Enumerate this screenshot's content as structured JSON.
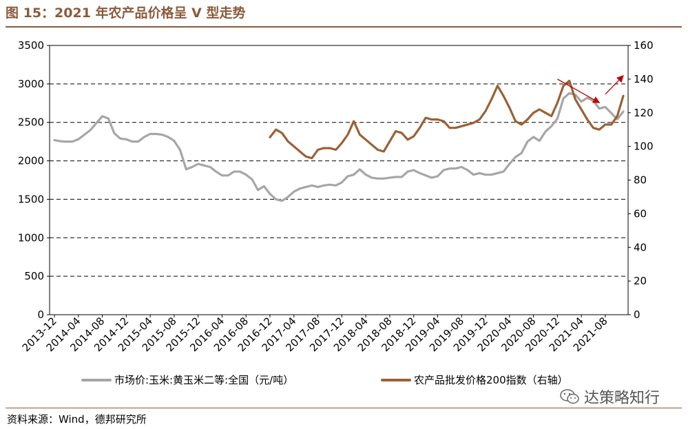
{
  "header": {
    "title": "图 15：2021 年农产品价格呈 V 型走势"
  },
  "footer": {
    "source": "资料来源：Wind，德邦研究所",
    "watermark": "达策略知行",
    "watermark_icon": "wechat-icon"
  },
  "chart_data": {
    "type": "line",
    "x": [
      "2013-12",
      "2014-01",
      "2014-02",
      "2014-03",
      "2014-04",
      "2014-05",
      "2014-06",
      "2014-07",
      "2014-08",
      "2014-09",
      "2014-10",
      "2014-11",
      "2014-12",
      "2015-01",
      "2015-02",
      "2015-03",
      "2015-04",
      "2015-05",
      "2015-06",
      "2015-07",
      "2015-08",
      "2015-09",
      "2015-10",
      "2015-11",
      "2015-12",
      "2016-01",
      "2016-02",
      "2016-03",
      "2016-04",
      "2016-05",
      "2016-06",
      "2016-07",
      "2016-08",
      "2016-09",
      "2016-10",
      "2016-11",
      "2016-12",
      "2017-01",
      "2017-02",
      "2017-03",
      "2017-04",
      "2017-05",
      "2017-06",
      "2017-07",
      "2017-08",
      "2017-09",
      "2017-10",
      "2017-11",
      "2017-12",
      "2018-01",
      "2018-02",
      "2018-03",
      "2018-04",
      "2018-05",
      "2018-06",
      "2018-07",
      "2018-08",
      "2018-09",
      "2018-10",
      "2018-11",
      "2018-12",
      "2019-01",
      "2019-02",
      "2019-03",
      "2019-04",
      "2019-05",
      "2019-06",
      "2019-07",
      "2019-08",
      "2019-09",
      "2019-10",
      "2019-11",
      "2019-12",
      "2020-01",
      "2020-02",
      "2020-03",
      "2020-04",
      "2020-05",
      "2020-06",
      "2020-07",
      "2020-08",
      "2020-09",
      "2020-10",
      "2020-11",
      "2020-12",
      "2021-01",
      "2021-02",
      "2021-03",
      "2021-04",
      "2021-05",
      "2021-06",
      "2021-07",
      "2021-08",
      "2021-09",
      "2021-10",
      "2021-11"
    ],
    "x_tick_labels": [
      "2013-12",
      "2014-04",
      "2014-08",
      "2014-12",
      "2015-04",
      "2015-08",
      "2015-12",
      "2016-04",
      "2016-08",
      "2016-12",
      "2017-04",
      "2017-08",
      "2017-12",
      "2018-04",
      "2018-08",
      "2018-12",
      "2019-04",
      "2019-08",
      "2019-12",
      "2020-04",
      "2020-08",
      "2020-12",
      "2021-04",
      "2021-08"
    ],
    "series": [
      {
        "name": "市场价:玉米:黄玉米二等:全国（元/吨）",
        "axis": "left",
        "color": "#a6a6a6",
        "values": [
          2270,
          2255,
          2250,
          2250,
          2280,
          2340,
          2400,
          2490,
          2580,
          2550,
          2360,
          2290,
          2280,
          2250,
          2250,
          2310,
          2350,
          2350,
          2340,
          2310,
          2260,
          2140,
          1890,
          1920,
          1960,
          1940,
          1920,
          1860,
          1810,
          1810,
          1860,
          1860,
          1820,
          1760,
          1620,
          1670,
          1570,
          1500,
          1480,
          1530,
          1600,
          1640,
          1660,
          1680,
          1660,
          1680,
          1690,
          1680,
          1720,
          1800,
          1820,
          1890,
          1820,
          1780,
          1770,
          1770,
          1780,
          1790,
          1790,
          1860,
          1880,
          1840,
          1810,
          1780,
          1800,
          1880,
          1900,
          1900,
          1920,
          1880,
          1820,
          1840,
          1820,
          1820,
          1840,
          1860,
          1960,
          2050,
          2100,
          2250,
          2310,
          2260,
          2380,
          2450,
          2550,
          2810,
          2880,
          2860,
          2770,
          2820,
          2780,
          2680,
          2700,
          2620,
          2540,
          2640
        ]
      },
      {
        "name": "农产品批发价格200指数（右轴）",
        "axis": "right",
        "color": "#9b6034",
        "values": [
          null,
          null,
          null,
          null,
          null,
          null,
          null,
          null,
          null,
          null,
          null,
          null,
          null,
          null,
          null,
          null,
          null,
          null,
          null,
          null,
          null,
          null,
          null,
          null,
          null,
          null,
          null,
          null,
          null,
          null,
          null,
          null,
          null,
          null,
          null,
          null,
          105.5,
          110,
          108,
          103,
          100,
          97,
          94,
          93,
          98,
          99,
          99,
          98,
          102,
          107,
          115,
          107,
          104,
          101,
          98,
          97,
          103,
          109,
          108,
          104,
          106,
          111,
          117,
          116,
          116,
          115,
          111,
          111,
          112,
          113,
          114,
          116,
          121,
          128,
          136,
          130,
          123,
          115,
          113,
          116,
          120,
          122,
          120,
          118,
          126,
          136,
          139,
          128,
          122,
          116,
          111,
          110,
          113,
          113,
          118,
          130
        ]
      }
    ],
    "left_axis": {
      "ylim": [
        0,
        3500
      ],
      "ticks": [
        "0",
        "500",
        "1000",
        "1500",
        "2000",
        "2500",
        "3000",
        "3500"
      ]
    },
    "right_axis": {
      "ylim": [
        0,
        160
      ],
      "ticks": [
        "0",
        "20",
        "40",
        "60",
        "80",
        "100",
        "120",
        "140",
        "160"
      ]
    },
    "grid": "horizontal-dashed",
    "legend_placement": "bottom",
    "annotations": [
      {
        "type": "arrow",
        "color": "#c00000",
        "from": [
          "2020-12",
          140
        ],
        "to": [
          "2021-07",
          126
        ]
      },
      {
        "type": "arrow",
        "color": "#c00000",
        "from": [
          "2021-08",
          131
        ],
        "to": [
          "2021-11",
          142
        ]
      }
    ]
  }
}
